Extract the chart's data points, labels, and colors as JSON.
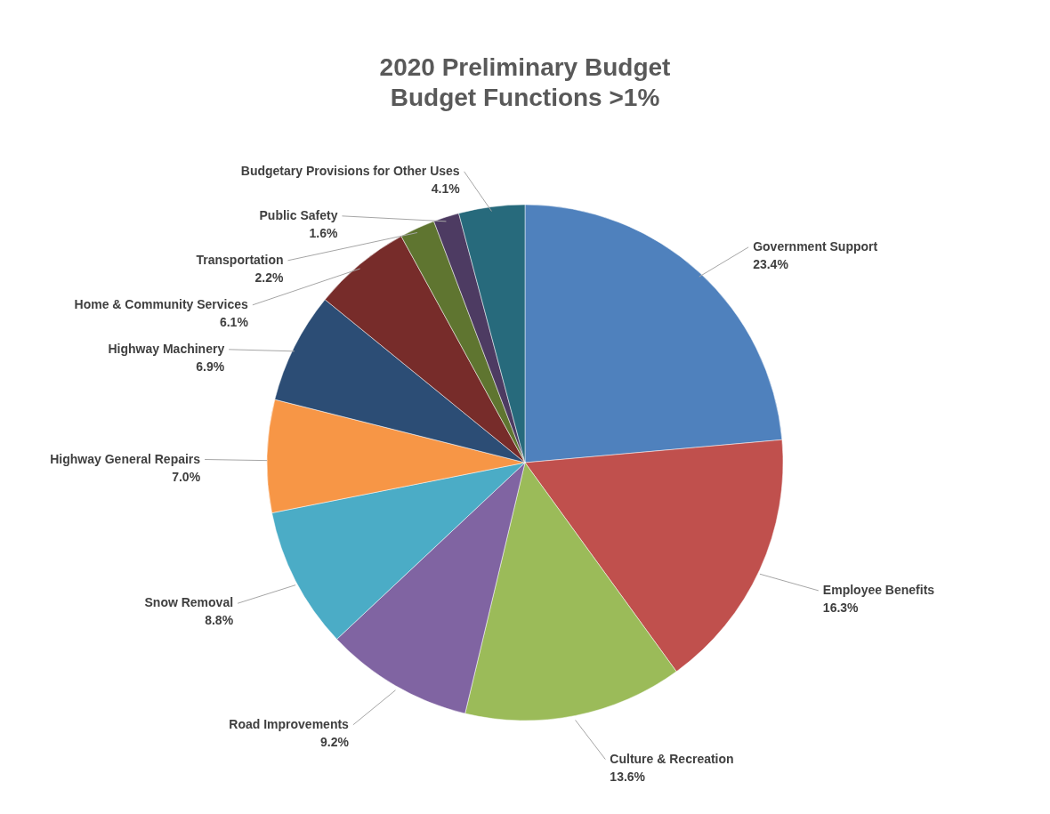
{
  "chart_data": {
    "type": "pie",
    "title": "2020 Preliminary Budget",
    "subtitle": "Budget Functions >1%",
    "categories": [
      "Government Support",
      "Employee Benefits",
      "Culture & Recreation",
      "Road Improvements",
      "Snow Removal",
      "Highway General Repairs",
      "Highway Machinery",
      "Home & Community Services",
      "Transportation",
      "Public Safety",
      "Budgetary Provisions for Other Uses"
    ],
    "values": [
      23.4,
      16.3,
      13.6,
      9.2,
      8.8,
      7.0,
      6.9,
      6.1,
      2.2,
      1.6,
      4.1
    ],
    "value_labels": [
      "23.4%",
      "16.3%",
      "13.6%",
      "9.2%",
      "8.8%",
      "7.0%",
      "6.9%",
      "6.1%",
      "2.2%",
      "1.6%",
      "4.1%"
    ],
    "colors": [
      "#4f81bd",
      "#c0504d",
      "#9bbb59",
      "#8064a2",
      "#4bacc6",
      "#f79646",
      "#2c4d75",
      "#772c2a",
      "#5f7530",
      "#4d3b62",
      "#276a7c"
    ]
  }
}
